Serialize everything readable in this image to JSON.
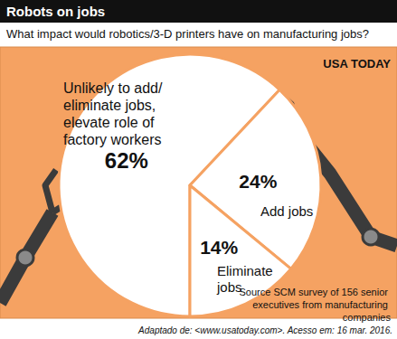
{
  "chart_data": {
    "type": "pie",
    "title": "Robots on jobs",
    "subtitle": "What impact would robotics/3-D printers have on manufacturing jobs?",
    "categories": [
      "Unlikely to add/ eliminate jobs, elevate role of factory workers",
      "Add jobs",
      "Eliminate jobs"
    ],
    "values": [
      62,
      24,
      14
    ],
    "value_labels": [
      "62%",
      "24%",
      "14%"
    ],
    "colors": [
      "#ffffff",
      "#ffffff",
      "#ffffff"
    ],
    "data_labels": true,
    "annotations": [
      "USA TODAY",
      "Source SCM survey of 156 senior executives from manufacturing companies",
      "Adaptado de: <www.usatoday.com>. Acesso em: 16 mar. 2016."
    ]
  }
}
